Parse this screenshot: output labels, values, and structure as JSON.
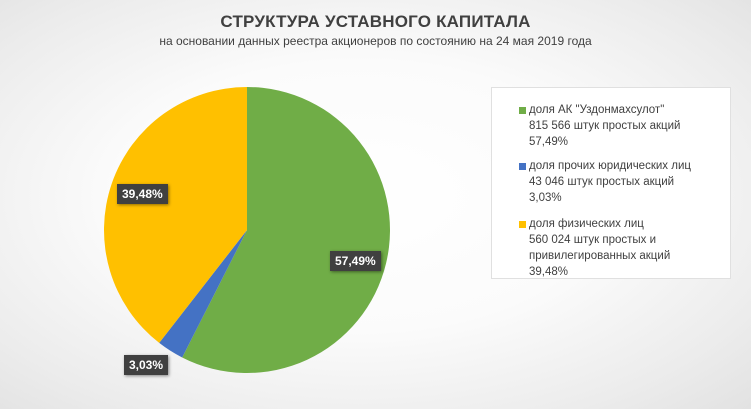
{
  "chart_data": {
    "type": "pie",
    "title": "СТРУКТУРА УСТАВНОГО КАПИТАЛА",
    "subtitle": "на основании данных реестра акционеров по состоянию на 24 мая 2019 года",
    "slices": [
      {
        "name": "доля АК \"Уздонмахсулот\"",
        "value": 57.49,
        "label": "57,49%",
        "color": "#70ad47",
        "legend_lines": [
          "доля АК \"Уздонмахсулот\"",
          "815 566 штук простых акций",
          "57,49%"
        ]
      },
      {
        "name": "доля прочих юридических лиц",
        "value": 3.03,
        "label": "3,03%",
        "color": "#4472c4",
        "legend_lines": [
          "доля прочих юридических лиц",
          "43 046 штук простых акций",
          "3,03%"
        ]
      },
      {
        "name": "доля физических лиц",
        "value": 39.48,
        "label": "39,48%",
        "color": "#ffc000",
        "legend_lines": [
          "доля физических лиц",
          "560 024 штук простых и",
          "привилегированных акций",
          "39,48%"
        ]
      }
    ],
    "start_angle": "12 o'clock",
    "direction": "clockwise",
    "legend_position": "right",
    "data_labels": "dark callout boxes"
  }
}
